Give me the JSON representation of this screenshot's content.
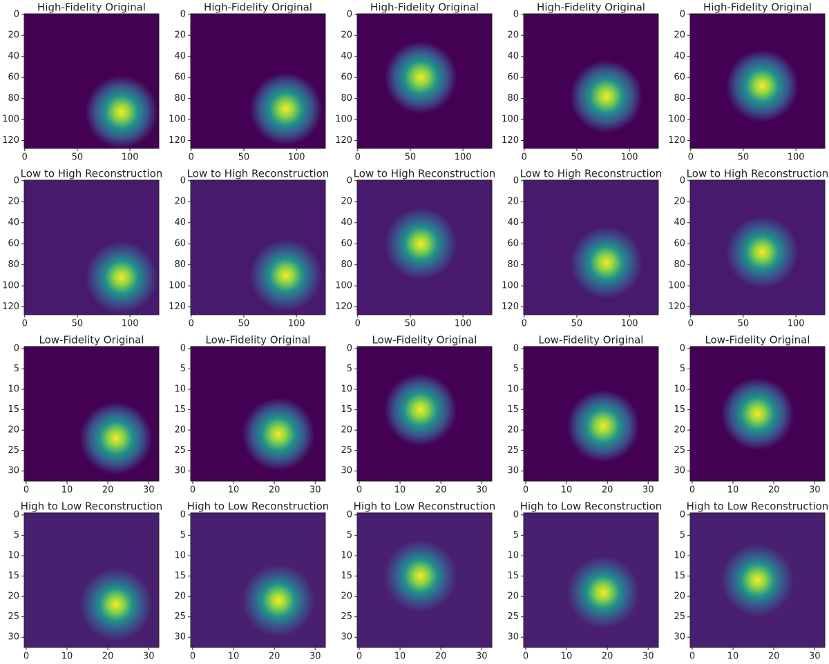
{
  "chart_data": [
    {
      "type": "image",
      "title": "High-Fidelity Original",
      "background": "#440154",
      "peak": [
        92,
        93
      ],
      "xlim": [
        -0.5,
        127.5
      ],
      "ylim": [
        127.5,
        -0.5
      ],
      "xticks": [
        0,
        50,
        100
      ],
      "yticks": [
        0,
        20,
        40,
        60,
        80,
        100,
        120
      ]
    },
    {
      "type": "image",
      "title": "High-Fidelity Original",
      "background": "#440154",
      "peak": [
        90,
        90
      ],
      "xlim": [
        -0.5,
        127.5
      ],
      "ylim": [
        127.5,
        -0.5
      ],
      "xticks": [
        0,
        50,
        100
      ],
      "yticks": [
        0,
        20,
        40,
        60,
        80,
        100,
        120
      ]
    },
    {
      "type": "image",
      "title": "High-Fidelity Original",
      "background": "#440154",
      "peak": [
        60,
        60
      ],
      "xlim": [
        -0.5,
        127.5
      ],
      "ylim": [
        127.5,
        -0.5
      ],
      "xticks": [
        0,
        50,
        100
      ],
      "yticks": [
        0,
        20,
        40,
        60,
        80,
        100,
        120
      ]
    },
    {
      "type": "image",
      "title": "High-Fidelity Original",
      "background": "#440154",
      "peak": [
        78,
        78
      ],
      "xlim": [
        -0.5,
        127.5
      ],
      "ylim": [
        127.5,
        -0.5
      ],
      "xticks": [
        0,
        50,
        100
      ],
      "yticks": [
        0,
        20,
        40,
        60,
        80,
        100,
        120
      ]
    },
    {
      "type": "image",
      "title": "High-Fidelity Original",
      "background": "#440154",
      "peak": [
        68,
        68
      ],
      "xlim": [
        -0.5,
        127.5
      ],
      "ylim": [
        127.5,
        -0.5
      ],
      "xticks": [
        0,
        50,
        100
      ],
      "yticks": [
        0,
        20,
        40,
        60,
        80,
        100,
        120
      ]
    },
    {
      "type": "image",
      "title": "Low to High Reconstruction",
      "background": "#471a6e",
      "peak": [
        92,
        92
      ],
      "xlim": [
        -0.5,
        127.5
      ],
      "ylim": [
        127.5,
        -0.5
      ],
      "xticks": [
        0,
        50,
        100
      ],
      "yticks": [
        0,
        20,
        40,
        60,
        80,
        100,
        120
      ]
    },
    {
      "type": "image",
      "title": "Low to High Reconstruction",
      "background": "#471a6e",
      "peak": [
        90,
        90
      ],
      "xlim": [
        -0.5,
        127.5
      ],
      "ylim": [
        127.5,
        -0.5
      ],
      "xticks": [
        0,
        50,
        100
      ],
      "yticks": [
        0,
        20,
        40,
        60,
        80,
        100,
        120
      ]
    },
    {
      "type": "image",
      "title": "Low to High Reconstruction",
      "background": "#471a6e",
      "peak": [
        60,
        60
      ],
      "xlim": [
        -0.5,
        127.5
      ],
      "ylim": [
        127.5,
        -0.5
      ],
      "xticks": [
        0,
        50,
        100
      ],
      "yticks": [
        0,
        20,
        40,
        60,
        80,
        100,
        120
      ]
    },
    {
      "type": "image",
      "title": "Low to High Reconstruction",
      "background": "#471a6e",
      "peak": [
        78,
        78
      ],
      "xlim": [
        -0.5,
        127.5
      ],
      "ylim": [
        127.5,
        -0.5
      ],
      "xticks": [
        0,
        50,
        100
      ],
      "yticks": [
        0,
        20,
        40,
        60,
        80,
        100,
        120
      ]
    },
    {
      "type": "image",
      "title": "Low to High Reconstruction",
      "background": "#471a6e",
      "peak": [
        68,
        68
      ],
      "xlim": [
        -0.5,
        127.5
      ],
      "ylim": [
        127.5,
        -0.5
      ],
      "xticks": [
        0,
        50,
        100
      ],
      "yticks": [
        0,
        20,
        40,
        60,
        80,
        100,
        120
      ]
    },
    {
      "type": "image",
      "title": "Low-Fidelity Original",
      "background": "#440154",
      "peak": [
        22,
        22
      ],
      "xlim": [
        -0.5,
        32.5
      ],
      "ylim": [
        32.5,
        -0.5
      ],
      "xticks": [
        0,
        10,
        20,
        30
      ],
      "yticks": [
        0,
        5,
        10,
        15,
        20,
        25,
        30
      ]
    },
    {
      "type": "image",
      "title": "Low-Fidelity Original",
      "background": "#440154",
      "peak": [
        21,
        21
      ],
      "xlim": [
        -0.5,
        32.5
      ],
      "ylim": [
        32.5,
        -0.5
      ],
      "xticks": [
        0,
        10,
        20,
        30
      ],
      "yticks": [
        0,
        5,
        10,
        15,
        20,
        25,
        30
      ]
    },
    {
      "type": "image",
      "title": "Low-Fidelity Original",
      "background": "#440154",
      "peak": [
        15,
        15
      ],
      "xlim": [
        -0.5,
        32.5
      ],
      "ylim": [
        32.5,
        -0.5
      ],
      "xticks": [
        0,
        10,
        20,
        30
      ],
      "yticks": [
        0,
        5,
        10,
        15,
        20,
        25,
        30
      ]
    },
    {
      "type": "image",
      "title": "Low-Fidelity Original",
      "background": "#440154",
      "peak": [
        19,
        19
      ],
      "xlim": [
        -0.5,
        32.5
      ],
      "ylim": [
        32.5,
        -0.5
      ],
      "xticks": [
        0,
        10,
        20,
        30
      ],
      "yticks": [
        0,
        5,
        10,
        15,
        20,
        25,
        30
      ]
    },
    {
      "type": "image",
      "title": "Low-Fidelity Original",
      "background": "#440154",
      "peak": [
        16,
        16
      ],
      "xlim": [
        -0.5,
        32.5
      ],
      "ylim": [
        32.5,
        -0.5
      ],
      "xticks": [
        0,
        10,
        20,
        30
      ],
      "yticks": [
        0,
        5,
        10,
        15,
        20,
        25,
        30
      ]
    },
    {
      "type": "image",
      "title": "High to Low Reconstruction",
      "background": "#48206f",
      "peak": [
        22,
        22
      ],
      "xlim": [
        -0.5,
        32.5
      ],
      "ylim": [
        32.5,
        -0.5
      ],
      "xticks": [
        0,
        10,
        20,
        30
      ],
      "yticks": [
        0,
        5,
        10,
        15,
        20,
        25,
        30
      ]
    },
    {
      "type": "image",
      "title": "High to Low Reconstruction",
      "background": "#48206f",
      "peak": [
        21,
        21
      ],
      "xlim": [
        -0.5,
        32.5
      ],
      "ylim": [
        32.5,
        -0.5
      ],
      "xticks": [
        0,
        10,
        20,
        30
      ],
      "yticks": [
        0,
        5,
        10,
        15,
        20,
        25,
        30
      ]
    },
    {
      "type": "image",
      "title": "High to Low Reconstruction",
      "background": "#48206f",
      "peak": [
        15,
        15
      ],
      "xlim": [
        -0.5,
        32.5
      ],
      "ylim": [
        32.5,
        -0.5
      ],
      "xticks": [
        0,
        10,
        20,
        30
      ],
      "yticks": [
        0,
        5,
        10,
        15,
        20,
        25,
        30
      ]
    },
    {
      "type": "image",
      "title": "High to Low Reconstruction",
      "background": "#48206f",
      "peak": [
        19,
        19
      ],
      "xlim": [
        -0.5,
        32.5
      ],
      "ylim": [
        32.5,
        -0.5
      ],
      "xticks": [
        0,
        10,
        20,
        30
      ],
      "yticks": [
        0,
        5,
        10,
        15,
        20,
        25,
        30
      ]
    },
    {
      "type": "image",
      "title": "High to Low Reconstruction",
      "background": "#48206f",
      "peak": [
        16,
        16
      ],
      "xlim": [
        -0.5,
        32.5
      ],
      "ylim": [
        32.5,
        -0.5
      ],
      "xticks": [
        0,
        10,
        20,
        30
      ],
      "yticks": [
        0,
        5,
        10,
        15,
        20,
        25,
        30
      ]
    }
  ]
}
